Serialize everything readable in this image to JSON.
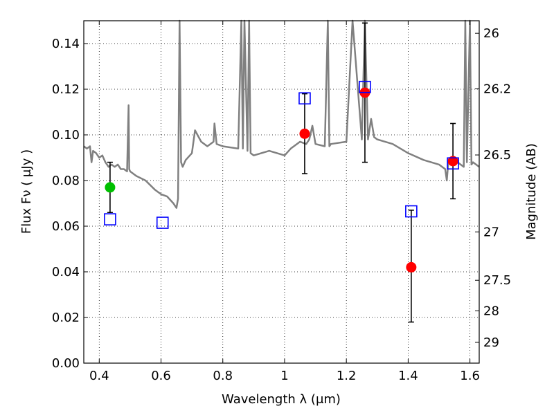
{
  "chart_data": {
    "type": "scatter",
    "xlabel": "Wavelength  λ (μm)",
    "ylabel": "Flux  Fν  ( μJy )",
    "y2label": "Magnitude (AB)",
    "xlim": [
      0.35,
      1.63
    ],
    "ylim": [
      0.0,
      0.15
    ],
    "grid": true,
    "x_ticks": [
      0.4,
      0.6,
      0.8,
      1.0,
      1.2,
      1.4,
      1.6
    ],
    "x_tick_labels": [
      "0.4",
      "0.6",
      "0.8",
      "1",
      "1.2",
      "1.4",
      "1.6"
    ],
    "y_ticks": [
      0.0,
      0.02,
      0.04,
      0.06,
      0.08,
      0.1,
      0.12,
      0.14
    ],
    "y_tick_labels": [
      "0.00",
      "0.02",
      "0.04",
      "0.06",
      "0.08",
      "0.10",
      "0.12",
      "0.14"
    ],
    "y2_ticks": [
      {
        "label": "26",
        "flux": 0.1445
      },
      {
        "label": "26.2",
        "flux": 0.1202
      },
      {
        "label": "26.5",
        "flux": 0.0912
      },
      {
        "label": "27",
        "flux": 0.0575
      },
      {
        "label": "27.5",
        "flux": 0.0363
      },
      {
        "label": "28",
        "flux": 0.0229
      },
      {
        "label": "29",
        "flux": 0.0091
      }
    ],
    "colors": {
      "spectrum": "#808080",
      "red_points": "#ff0000",
      "green_points": "#00c000",
      "model_squares": "#0000ff",
      "error_bars": "#000000"
    },
    "series": [
      {
        "kind": "spectrum-line",
        "x": [
          0.35,
          0.36,
          0.37,
          0.375,
          0.38,
          0.39,
          0.4,
          0.41,
          0.42,
          0.43,
          0.44,
          0.45,
          0.46,
          0.47,
          0.48,
          0.49,
          0.495,
          0.497,
          0.5,
          0.52,
          0.55,
          0.58,
          0.6,
          0.62,
          0.64,
          0.65,
          0.655,
          0.66,
          0.665,
          0.67,
          0.68,
          0.7,
          0.71,
          0.73,
          0.75,
          0.77,
          0.773,
          0.78,
          0.8,
          0.85,
          0.86,
          0.865,
          0.87,
          0.88,
          0.885,
          0.89,
          0.9,
          0.95,
          1.0,
          1.02,
          1.05,
          1.07,
          1.08,
          1.09,
          1.1,
          1.13,
          1.14,
          1.145,
          1.15,
          1.2,
          1.22,
          1.25,
          1.26,
          1.27,
          1.28,
          1.29,
          1.3,
          1.35,
          1.4,
          1.45,
          1.5,
          1.52,
          1.525,
          1.53,
          1.55,
          1.56,
          1.58,
          1.585,
          1.59,
          1.6,
          1.605,
          1.61,
          1.62,
          1.63
        ],
        "values": [
          0.095,
          0.094,
          0.095,
          0.088,
          0.093,
          0.092,
          0.09,
          0.091,
          0.088,
          0.086,
          0.087,
          0.086,
          0.087,
          0.085,
          0.085,
          0.084,
          0.113,
          0.085,
          0.084,
          0.082,
          0.08,
          0.076,
          0.074,
          0.073,
          0.07,
          0.068,
          0.072,
          0.15,
          0.088,
          0.086,
          0.089,
          0.092,
          0.102,
          0.097,
          0.095,
          0.097,
          0.105,
          0.096,
          0.095,
          0.094,
          0.15,
          0.094,
          0.15,
          0.093,
          0.15,
          0.092,
          0.091,
          0.093,
          0.091,
          0.094,
          0.097,
          0.096,
          0.098,
          0.104,
          0.096,
          0.095,
          0.15,
          0.095,
          0.096,
          0.097,
          0.15,
          0.098,
          0.15,
          0.098,
          0.107,
          0.099,
          0.098,
          0.096,
          0.092,
          0.089,
          0.087,
          0.085,
          0.08,
          0.088,
          0.087,
          0.088,
          0.086,
          0.15,
          0.088,
          0.15,
          0.087,
          0.088,
          0.087,
          0.086
        ]
      },
      {
        "kind": "photometry-red",
        "x": [
          1.065,
          1.26,
          1.41,
          1.545
        ],
        "values": [
          0.1005,
          0.1185,
          0.042,
          0.0885
        ],
        "err_low": [
          0.083,
          0.088,
          0.018,
          0.072
        ],
        "err_high": [
          0.118,
          0.149,
          0.067,
          0.105
        ]
      },
      {
        "kind": "photometry-green",
        "x": [
          0.435
        ],
        "values": [
          0.077
        ],
        "err_low": [
          0.066
        ],
        "err_high": [
          0.088
        ]
      },
      {
        "kind": "model-squares",
        "x": [
          0.435,
          0.605,
          1.065,
          1.26,
          1.41,
          1.545
        ],
        "values": [
          0.063,
          0.0615,
          0.116,
          0.121,
          0.0665,
          0.0875
        ]
      }
    ]
  }
}
